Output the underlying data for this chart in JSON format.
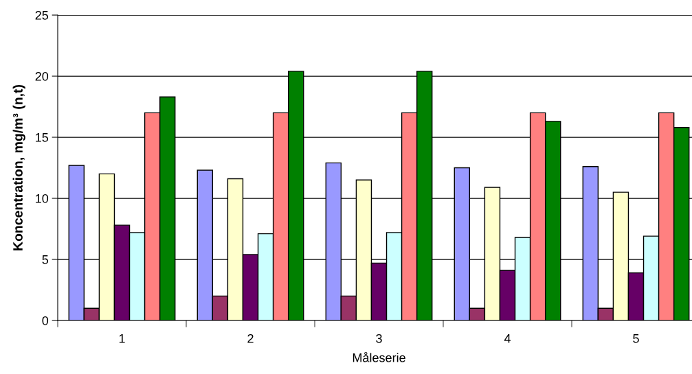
{
  "chart_data": {
    "type": "bar",
    "xlabel": "Måleserie",
    "ylabel": "Koncentration, mg/m³ (n,t)",
    "categories": [
      "1",
      "2",
      "3",
      "4",
      "5"
    ],
    "series": [
      {
        "color": "#9999ff",
        "values": [
          12.7,
          12.3,
          12.9,
          12.5,
          12.6
        ]
      },
      {
        "color": "#993366",
        "values": [
          1.0,
          2.0,
          2.0,
          1.0,
          1.0
        ]
      },
      {
        "color": "#ffffcc",
        "values": [
          12.0,
          11.6,
          11.5,
          10.9,
          10.5
        ]
      },
      {
        "color": "#660066",
        "values": [
          7.8,
          5.4,
          4.7,
          4.1,
          3.9
        ]
      },
      {
        "color": "#ccffff",
        "values": [
          7.2,
          7.1,
          7.2,
          6.8,
          6.9
        ]
      },
      {
        "color": "#ff8080",
        "values": [
          17.0,
          17.0,
          17.0,
          17.0,
          17.0
        ]
      },
      {
        "color": "#008000",
        "values": [
          18.3,
          20.4,
          20.4,
          16.3,
          15.8
        ]
      }
    ],
    "ylim": [
      0,
      25
    ],
    "yticks": [
      0,
      5,
      10,
      15,
      20,
      25
    ],
    "grid": "y"
  }
}
